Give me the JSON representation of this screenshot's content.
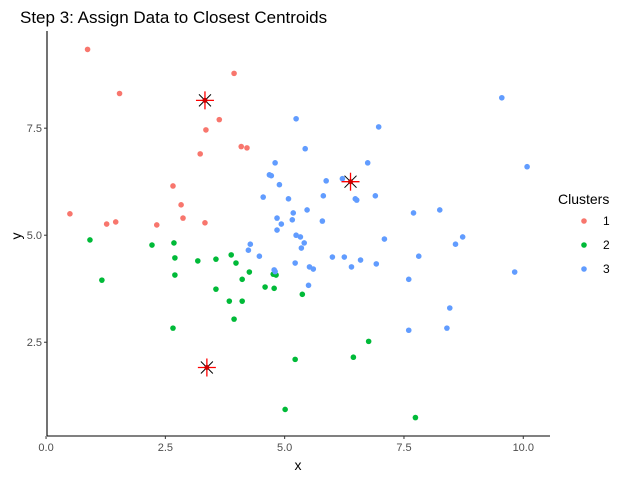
{
  "chart_data": {
    "type": "scatter",
    "title": "Step 3: Assign Data to Closest Centroids",
    "xlabel": "x",
    "ylabel": "y",
    "xlim": [
      0.02,
      10.56
    ],
    "ylim": [
      0.31,
      9.77
    ],
    "x_ticks": [
      {
        "value": 0,
        "label": "0.0"
      },
      {
        "value": 2.5,
        "label": "2.5"
      },
      {
        "value": 5,
        "label": "5.0"
      },
      {
        "value": 7.5,
        "label": "7.5"
      },
      {
        "value": 10,
        "label": "10.0"
      }
    ],
    "y_ticks": [
      {
        "value": 2.5,
        "label": "2.5"
      },
      {
        "value": 5,
        "label": "5.0"
      },
      {
        "value": 7.5,
        "label": "7.5"
      }
    ],
    "grid": false,
    "legend": {
      "title": "Clusters",
      "placement": "right"
    },
    "series": [
      {
        "name": "1",
        "color": "#F8766D",
        "points": [
          [
            0.87,
            9.34
          ],
          [
            3.94,
            8.78
          ],
          [
            1.54,
            8.31
          ],
          [
            3.63,
            7.7
          ],
          [
            3.35,
            7.46
          ],
          [
            4.09,
            7.07
          ],
          [
            4.21,
            7.04
          ],
          [
            3.23,
            6.9
          ],
          [
            2.66,
            6.15
          ],
          [
            2.83,
            5.71
          ],
          [
            0.5,
            5.5
          ],
          [
            2.87,
            5.4
          ],
          [
            1.27,
            5.26
          ],
          [
            1.46,
            5.31
          ],
          [
            2.32,
            5.24
          ],
          [
            3.33,
            5.29
          ]
        ]
      },
      {
        "name": "2",
        "color": "#00BA38",
        "points": [
          [
            0.92,
            4.89
          ],
          [
            2.22,
            4.77
          ],
          [
            2.68,
            4.82
          ],
          [
            2.7,
            4.47
          ],
          [
            3.18,
            4.4
          ],
          [
            3.56,
            4.44
          ],
          [
            3.88,
            4.54
          ],
          [
            3.98,
            4.35
          ],
          [
            1.17,
            3.95
          ],
          [
            2.7,
            4.07
          ],
          [
            4.26,
            4.14
          ],
          [
            4.11,
            3.97
          ],
          [
            3.56,
            3.74
          ],
          [
            4.59,
            3.79
          ],
          [
            4.78,
            3.76
          ],
          [
            4.76,
            4.09
          ],
          [
            4.82,
            4.07
          ],
          [
            3.84,
            3.46
          ],
          [
            4.11,
            3.46
          ],
          [
            3.94,
            3.04
          ],
          [
            2.66,
            2.83
          ],
          [
            5.22,
            2.1
          ],
          [
            5.01,
            0.93
          ],
          [
            5.37,
            3.62
          ],
          [
            6.76,
            2.52
          ],
          [
            6.44,
            2.15
          ],
          [
            7.74,
            0.74
          ]
        ]
      },
      {
        "name": "3",
        "color": "#619CFF",
        "points": [
          [
            9.55,
            8.21
          ],
          [
            5.24,
            7.72
          ],
          [
            6.97,
            7.53
          ],
          [
            5.43,
            7.02
          ],
          [
            4.8,
            6.69
          ],
          [
            6.74,
            6.69
          ],
          [
            10.08,
            6.6
          ],
          [
            4.68,
            6.41
          ],
          [
            4.72,
            6.39
          ],
          [
            5.87,
            6.27
          ],
          [
            6.21,
            6.32
          ],
          [
            4.89,
            6.18
          ],
          [
            4.55,
            5.89
          ],
          [
            5.08,
            5.85
          ],
          [
            5.81,
            5.92
          ],
          [
            6.48,
            5.85
          ],
          [
            6.51,
            5.82
          ],
          [
            6.9,
            5.92
          ],
          [
            7.7,
            5.52
          ],
          [
            8.25,
            5.59
          ],
          [
            5.18,
            5.52
          ],
          [
            5.47,
            5.59
          ],
          [
            4.84,
            5.4
          ],
          [
            5.16,
            5.36
          ],
          [
            5.79,
            5.33
          ],
          [
            4.93,
            5.26
          ],
          [
            4.84,
            5.12
          ],
          [
            5.24,
            5.0
          ],
          [
            5.33,
            4.96
          ],
          [
            5.41,
            4.82
          ],
          [
            5.35,
            4.7
          ],
          [
            7.09,
            4.91
          ],
          [
            8.73,
            4.96
          ],
          [
            8.58,
            4.79
          ],
          [
            4.28,
            4.79
          ],
          [
            4.24,
            4.65
          ],
          [
            4.47,
            4.51
          ],
          [
            6.0,
            4.49
          ],
          [
            6.25,
            4.49
          ],
          [
            6.59,
            4.42
          ],
          [
            7.81,
            4.51
          ],
          [
            5.22,
            4.35
          ],
          [
            6.92,
            4.33
          ],
          [
            5.52,
            4.26
          ],
          [
            5.6,
            4.21
          ],
          [
            6.4,
            4.26
          ],
          [
            4.78,
            4.19
          ],
          [
            4.8,
            4.15
          ],
          [
            9.82,
            4.14
          ],
          [
            7.6,
            3.97
          ],
          [
            5.5,
            3.83
          ],
          [
            8.46,
            3.3
          ],
          [
            7.6,
            2.78
          ],
          [
            8.4,
            2.83
          ]
        ]
      }
    ],
    "centroids": {
      "color": "#FF0000",
      "points": [
        [
          3.33,
          8.15
        ],
        [
          3.37,
          1.91
        ],
        [
          6.38,
          6.25
        ]
      ]
    }
  }
}
